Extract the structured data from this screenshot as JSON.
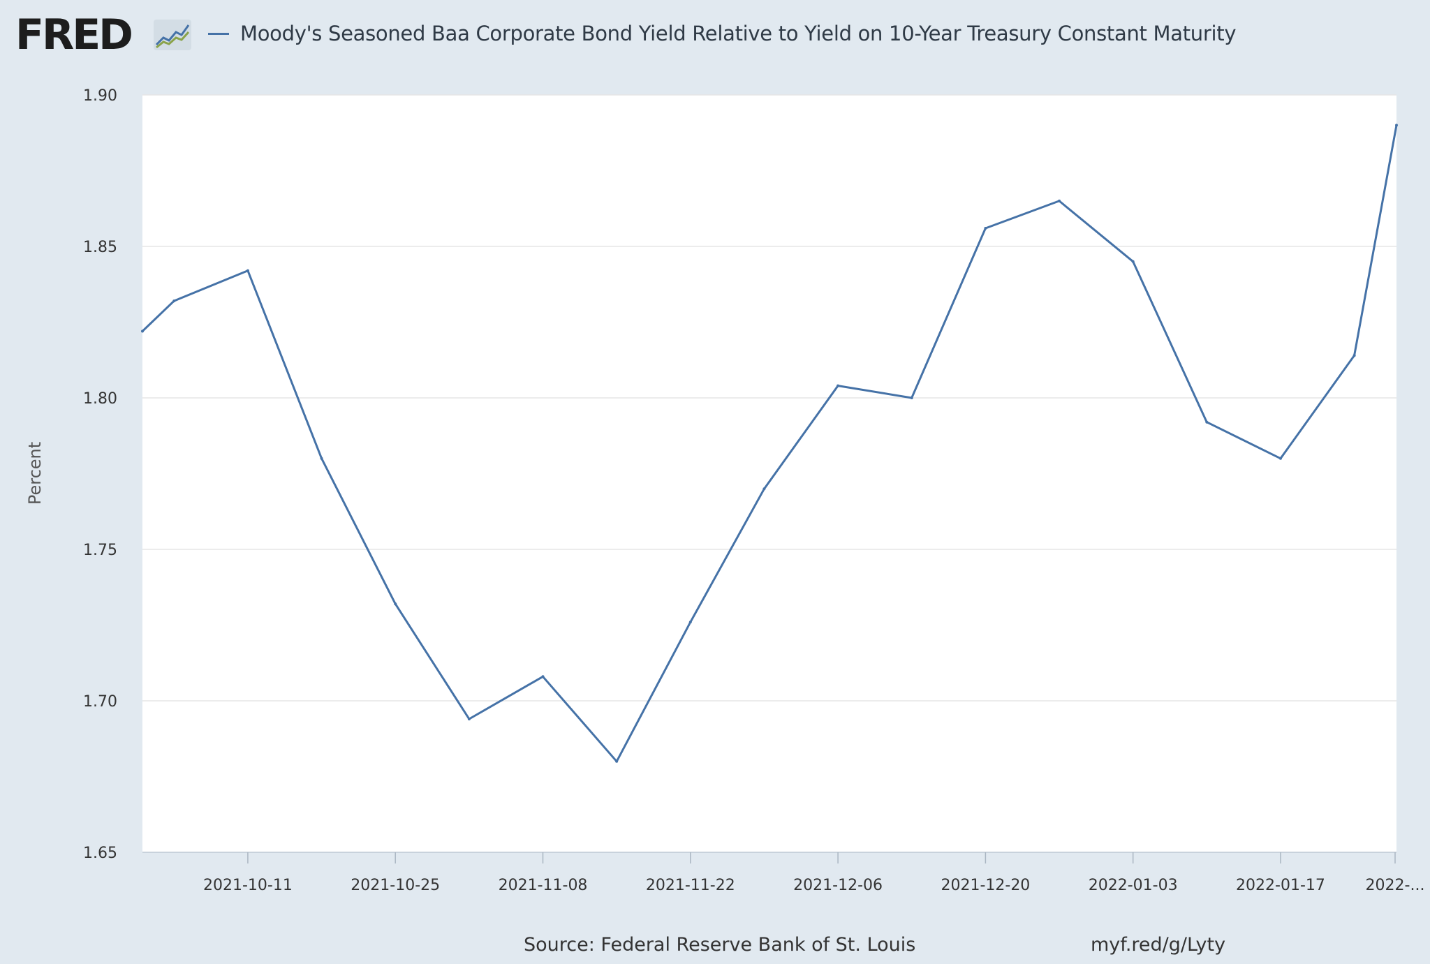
{
  "header": {
    "logo": "FRED",
    "title": "Moody's Seasoned Baa Corporate Bond Yield Relative to Yield on 10-Year Treasury Constant Maturity"
  },
  "footer": {
    "source": "Source: Federal Reserve Bank of St. Louis",
    "url": "myf.red/g/Lyty"
  },
  "colors": {
    "series": "#4572a7",
    "page_background": "#e1e9f0",
    "plot_background": "#ffffff",
    "gridline": "#e6e6e6"
  },
  "chart_data": {
    "type": "line",
    "title": "Moody's Seasoned Baa Corporate Bond Yield Relative to Yield on 10-Year Treasury Constant Maturity",
    "xlabel": "",
    "ylabel": "Percent",
    "ylim": [
      1.65,
      1.9
    ],
    "xlim": [
      "2021-10-01",
      "2022-01-28"
    ],
    "grid": true,
    "y_ticks": [
      "1.65",
      "1.70",
      "1.75",
      "1.80",
      "1.85",
      "1.90"
    ],
    "x_ticks": [
      {
        "date": "2021-10-11",
        "label": "2021-10-11"
      },
      {
        "date": "2021-10-25",
        "label": "2021-10-25"
      },
      {
        "date": "2021-11-08",
        "label": "2021-11-08"
      },
      {
        "date": "2021-11-22",
        "label": "2021-11-22"
      },
      {
        "date": "2021-12-06",
        "label": "2021-12-06"
      },
      {
        "date": "2021-12-20",
        "label": "2021-12-20"
      },
      {
        "date": "2022-01-03",
        "label": "2022-01-03"
      },
      {
        "date": "2022-01-17",
        "label": "2022-01-17"
      },
      {
        "date": "2022-01-31",
        "label": "2022-..."
      }
    ],
    "series": [
      {
        "color": "#4572a7",
        "points": [
          {
            "x": "2021-10-01",
            "y": 1.822
          },
          {
            "x": "2021-10-04",
            "y": 1.832
          },
          {
            "x": "2021-10-11",
            "y": 1.842
          },
          {
            "x": "2021-10-18",
            "y": 1.78
          },
          {
            "x": "2021-10-25",
            "y": 1.732
          },
          {
            "x": "2021-11-01",
            "y": 1.694
          },
          {
            "x": "2021-11-08",
            "y": 1.708
          },
          {
            "x": "2021-11-15",
            "y": 1.68
          },
          {
            "x": "2021-11-22",
            "y": 1.726
          },
          {
            "x": "2021-11-29",
            "y": 1.77
          },
          {
            "x": "2021-12-06",
            "y": 1.804
          },
          {
            "x": "2021-12-13",
            "y": 1.8
          },
          {
            "x": "2021-12-20",
            "y": 1.856
          },
          {
            "x": "2021-12-27",
            "y": 1.865
          },
          {
            "x": "2022-01-03",
            "y": 1.845
          },
          {
            "x": "2022-01-10",
            "y": 1.792
          },
          {
            "x": "2022-01-17",
            "y": 1.78
          },
          {
            "x": "2022-01-24",
            "y": 1.814
          },
          {
            "x": "2022-01-28",
            "y": 1.89
          }
        ]
      }
    ]
  }
}
